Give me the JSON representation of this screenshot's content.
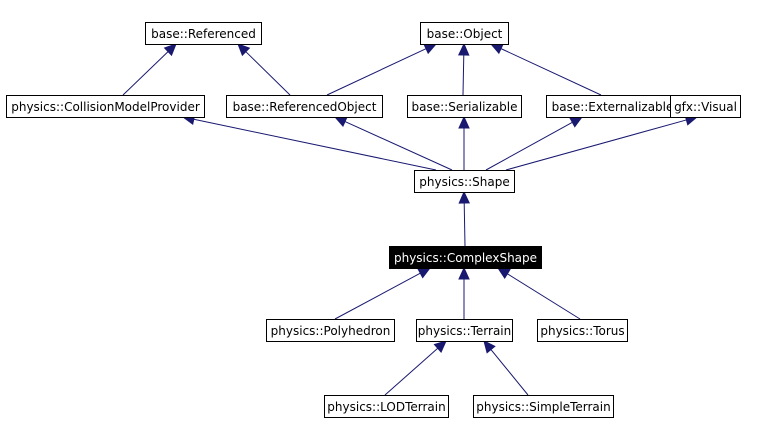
{
  "diagram": {
    "nodes": [
      {
        "id": "referenced",
        "label": "base::Referenced"
      },
      {
        "id": "object",
        "label": "base::Object"
      },
      {
        "id": "collision",
        "label": "physics::CollisionModelProvider"
      },
      {
        "id": "refobj",
        "label": "base::ReferencedObject"
      },
      {
        "id": "serializable",
        "label": "base::Serializable"
      },
      {
        "id": "externalizable",
        "label": "base::Externalizable"
      },
      {
        "id": "visual",
        "label": "gfx::Visual"
      },
      {
        "id": "shape",
        "label": "physics::Shape"
      },
      {
        "id": "complex",
        "label": "physics::ComplexShape",
        "highlight": true
      },
      {
        "id": "polyhedron",
        "label": "physics::Polyhedron"
      },
      {
        "id": "terrain",
        "label": "physics::Terrain"
      },
      {
        "id": "torus",
        "label": "physics::Torus"
      },
      {
        "id": "lod",
        "label": "physics::LODTerrain"
      },
      {
        "id": "simple",
        "label": "physics::SimpleTerrain"
      }
    ],
    "edges": [
      {
        "from": "collision",
        "to": "referenced"
      },
      {
        "from": "refobj",
        "to": "referenced"
      },
      {
        "from": "refobj",
        "to": "object"
      },
      {
        "from": "serializable",
        "to": "object"
      },
      {
        "from": "externalizable",
        "to": "object"
      },
      {
        "from": "shape",
        "to": "collision"
      },
      {
        "from": "shape",
        "to": "refobj"
      },
      {
        "from": "shape",
        "to": "serializable"
      },
      {
        "from": "shape",
        "to": "externalizable"
      },
      {
        "from": "shape",
        "to": "visual"
      },
      {
        "from": "complex",
        "to": "shape"
      },
      {
        "from": "polyhedron",
        "to": "complex"
      },
      {
        "from": "terrain",
        "to": "complex"
      },
      {
        "from": "torus",
        "to": "complex"
      },
      {
        "from": "lod",
        "to": "terrain"
      },
      {
        "from": "simple",
        "to": "terrain"
      }
    ],
    "colors": {
      "edge": "#191970",
      "highlight_fill": "#000000",
      "highlight_text": "#ffffff",
      "node_fill": "#ffffff",
      "node_border": "#000000"
    }
  }
}
